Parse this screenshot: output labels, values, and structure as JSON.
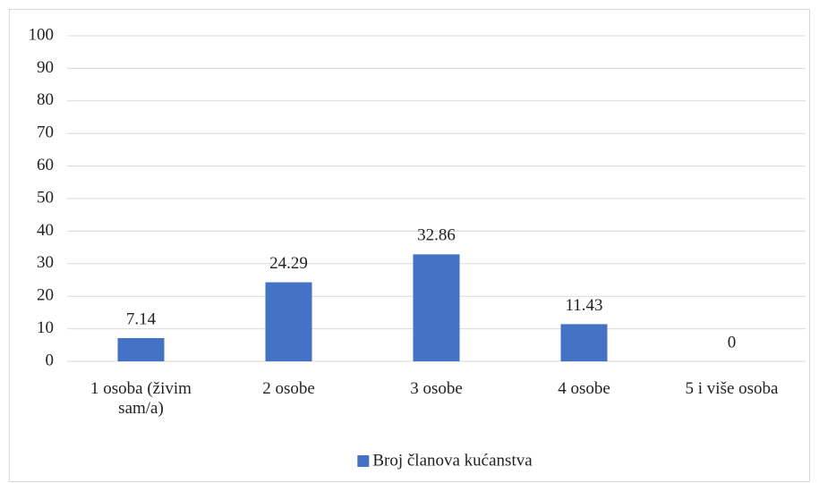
{
  "chart_data": {
    "type": "bar",
    "categories": [
      "1 osoba (živim sam/a)",
      "2 osobe",
      "3 osobe",
      "4 osobe",
      "5 i više osoba"
    ],
    "series": [
      {
        "name": "Broj članova kućanstva",
        "color": "#4472c4",
        "values": [
          7.14,
          24.29,
          32.86,
          11.43,
          0
        ]
      }
    ],
    "ylim": [
      0,
      100
    ],
    "yticks": [
      0,
      10,
      20,
      30,
      40,
      50,
      60,
      70,
      80,
      90,
      100
    ],
    "grid": true,
    "legend": "bottom"
  }
}
